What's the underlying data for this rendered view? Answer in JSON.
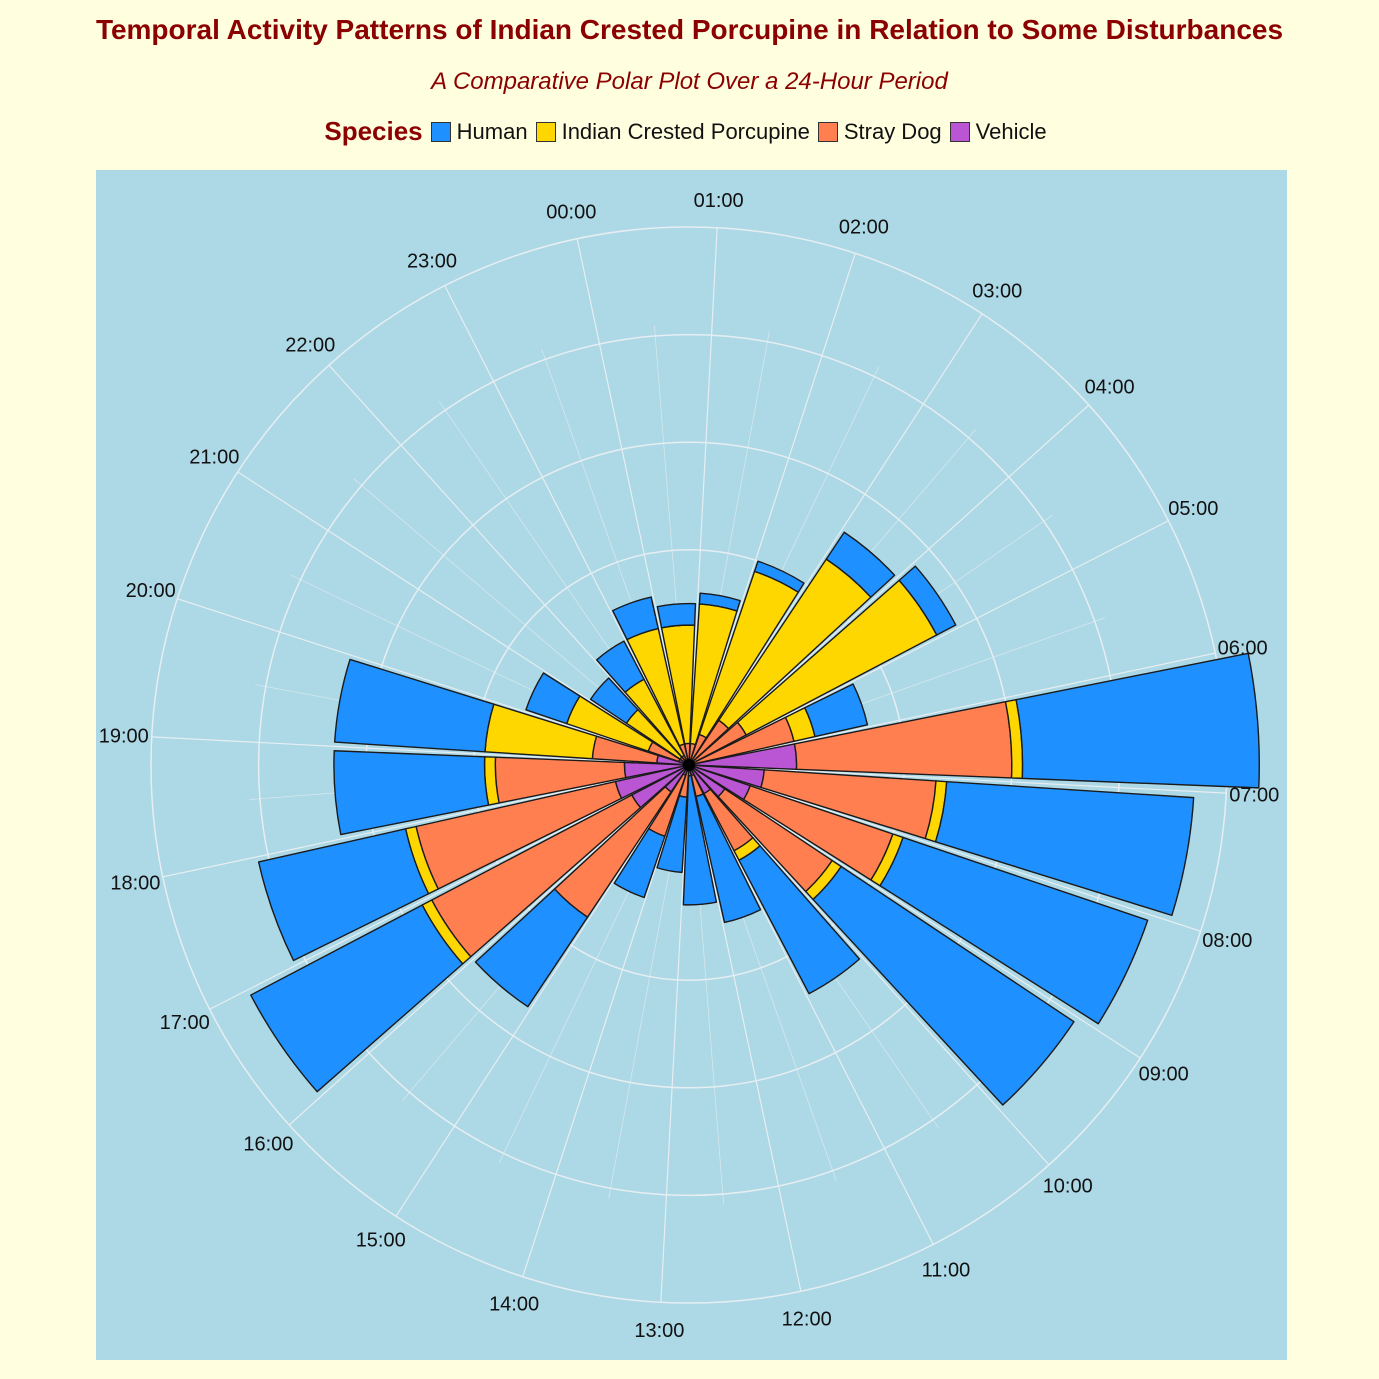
{
  "chart_data": {
    "type": "bar",
    "coord": "polar",
    "stacked": true,
    "title": "Temporal Activity Patterns of Indian Crested Porcupine in Relation to Some Disturbances",
    "subtitle": "A Comparative Polar Plot Over a 24-Hour Period",
    "legend_title": "Species",
    "legend_position": "top",
    "grid": true,
    "categories": [
      "00:00",
      "01:00",
      "02:00",
      "03:00",
      "04:00",
      "05:00",
      "06:00",
      "07:00",
      "08:00",
      "09:00",
      "10:00",
      "11:00",
      "12:00",
      "13:00",
      "14:00",
      "15:00",
      "16:00",
      "17:00",
      "18:00",
      "19:00",
      "20:00",
      "21:00",
      "22:00",
      "23:00"
    ],
    "series": [
      {
        "name": "Vehicle",
        "color": "#ba55d3",
        "values": [
          0,
          0,
          0,
          0,
          0,
          0,
          10,
          7,
          6,
          4,
          3,
          1,
          0,
          0,
          1,
          3,
          6,
          7,
          6,
          3,
          1,
          0,
          0,
          0
        ]
      },
      {
        "name": "Stray Dog",
        "color": "#ff7f50",
        "values": [
          2,
          2,
          3,
          5,
          6,
          10,
          20,
          16,
          14,
          12,
          6,
          2,
          1,
          3,
          6,
          14,
          21,
          19,
          12,
          6,
          3,
          1,
          1,
          2
        ]
      },
      {
        "name": "Indian Crested Porcupine",
        "color": "#ffd700",
        "values": [
          11,
          13,
          16,
          18,
          20,
          2,
          1,
          1,
          1,
          1,
          1,
          0,
          0,
          0,
          0,
          0,
          1,
          1,
          1,
          10,
          8,
          6,
          8,
          11
        ]
      },
      {
        "name": "Human",
        "color": "#1e90ff",
        "values": [
          2,
          1,
          1,
          3,
          2,
          5,
          22,
          23,
          24,
          26,
          14,
          12,
          12,
          7,
          6,
          10,
          18,
          14,
          14,
          14,
          4,
          4,
          4,
          3
        ]
      }
    ],
    "r_ticks": [
      0,
      10,
      20,
      30,
      40,
      50
    ]
  }
}
